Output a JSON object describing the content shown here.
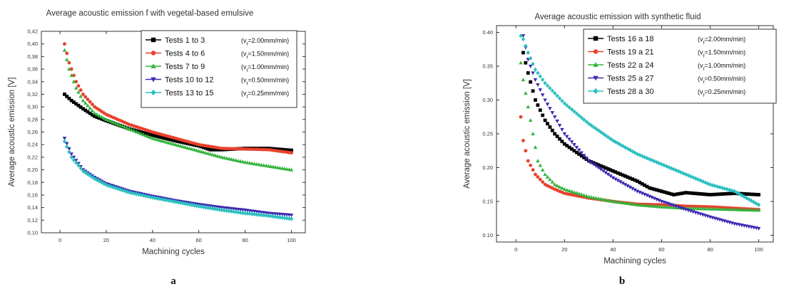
{
  "figure": {
    "panel_labels": [
      "a",
      "b"
    ]
  },
  "chart_data": [
    {
      "type": "scatter",
      "title": "Average acoustic emission f with vegetal-based emulsive",
      "xlabel": "Machining cycles",
      "ylabel": "Average acoustic emission [V]",
      "xlim": [
        -8,
        106
      ],
      "ylim": [
        0.1,
        0.42
      ],
      "x_ticks": [
        0,
        20,
        40,
        60,
        80,
        100
      ],
      "y_ticks": [
        0.1,
        0.12,
        0.14,
        0.16,
        0.18,
        0.2,
        0.22,
        0.24,
        0.26,
        0.28,
        0.3,
        0.32,
        0.34,
        0.36,
        0.38,
        0.4,
        0.42
      ],
      "y_tick_labels": [
        "0,10",
        "0,12",
        "0,14",
        "0,16",
        "0,18",
        "0,20",
        "0,22",
        "0,24",
        "0,26",
        "0,28",
        "0,30",
        "0,32",
        "0,34",
        "0,36",
        "0,38",
        "0,40",
        "0,42"
      ],
      "grid": false,
      "legend_position": "top-right",
      "series": [
        {
          "name": "Tests 1 to 3",
          "condition": "(v",
          "sub": "f",
          "condition_rest": "=2.00mm/min)",
          "color": "#000000",
          "marker": "square",
          "x": [
            2,
            5,
            10,
            15,
            20,
            30,
            40,
            50,
            60,
            65,
            70,
            80,
            90,
            100
          ],
          "y": [
            0.32,
            0.31,
            0.297,
            0.285,
            0.278,
            0.265,
            0.255,
            0.246,
            0.238,
            0.232,
            0.232,
            0.234,
            0.234,
            0.231
          ]
        },
        {
          "name": "Tests 4 to 6",
          "condition": "(v",
          "sub": "f",
          "condition_rest": "=1.50mm/min)",
          "color": "#e8412c",
          "marker": "circle",
          "x": [
            2,
            4,
            7,
            10,
            15,
            20,
            30,
            40,
            50,
            60,
            70,
            80,
            90,
            100
          ],
          "y": [
            0.4,
            0.37,
            0.34,
            0.32,
            0.3,
            0.288,
            0.272,
            0.26,
            0.25,
            0.24,
            0.234,
            0.233,
            0.232,
            0.227
          ]
        },
        {
          "name": "Tests 7 to 9",
          "condition": "(v",
          "sub": "f",
          "condition_rest": "=1.00mm/min)",
          "color": "#33b43c",
          "marker": "triangle-up",
          "x": [
            2,
            4,
            7,
            10,
            15,
            20,
            30,
            40,
            50,
            60,
            70,
            80,
            90,
            100
          ],
          "y": [
            0.39,
            0.36,
            0.33,
            0.31,
            0.29,
            0.28,
            0.265,
            0.25,
            0.24,
            0.23,
            0.22,
            0.212,
            0.206,
            0.2
          ]
        },
        {
          "name": "Tests 10 to 12",
          "condition": "(v",
          "sub": "f",
          "condition_rest": "=0.50mm/min)",
          "color": "#3a2ab0",
          "marker": "triangle-down",
          "x": [
            2,
            5,
            10,
            15,
            20,
            30,
            40,
            50,
            60,
            70,
            80,
            90,
            100
          ],
          "y": [
            0.25,
            0.225,
            0.2,
            0.188,
            0.178,
            0.166,
            0.158,
            0.151,
            0.145,
            0.14,
            0.136,
            0.131,
            0.128
          ]
        },
        {
          "name": "Tests 13 to 15",
          "condition": "(v",
          "sub": "f",
          "condition_rest": "=0.25mm/min)",
          "color": "#2bbfbf",
          "marker": "diamond",
          "x": [
            2,
            5,
            10,
            15,
            20,
            30,
            40,
            50,
            60,
            70,
            80,
            90,
            100
          ],
          "y": [
            0.245,
            0.22,
            0.198,
            0.186,
            0.176,
            0.164,
            0.156,
            0.149,
            0.142,
            0.136,
            0.131,
            0.127,
            0.122
          ]
        }
      ]
    },
    {
      "type": "scatter",
      "title": "Average acoustic emission with synthetic fluid",
      "xlabel": "Machining cycles",
      "ylabel": "Average acoustic emission [V]",
      "xlim": [
        -8,
        106
      ],
      "ylim": [
        0.09,
        0.41
      ],
      "x_ticks": [
        0,
        20,
        40,
        60,
        80,
        100
      ],
      "y_ticks": [
        0.1,
        0.15,
        0.2,
        0.25,
        0.3,
        0.35,
        0.4
      ],
      "y_tick_labels": [
        "0.10",
        "0.15",
        "0.20",
        "0.25",
        "0.30",
        "0.35",
        "0.40"
      ],
      "grid": false,
      "legend_position": "top-right",
      "series": [
        {
          "name": "Tests 16 a 18",
          "condition": "(v",
          "sub": "f",
          "condition_rest": "=2.00mm/min)",
          "color": "#000000",
          "marker": "square",
          "x": [
            3,
            5,
            8,
            12,
            16,
            20,
            30,
            40,
            50,
            55,
            60,
            65,
            70,
            80,
            90,
            100
          ],
          "y": [
            0.37,
            0.34,
            0.3,
            0.27,
            0.25,
            0.235,
            0.21,
            0.195,
            0.18,
            0.17,
            0.165,
            0.16,
            0.163,
            0.16,
            0.162,
            0.16
          ]
        },
        {
          "name": "Tests 19 a 21",
          "condition": "(v",
          "sub": "f",
          "condition_rest": "=1.50mm/min)",
          "color": "#e8412c",
          "marker": "circle",
          "x": [
            2,
            3,
            5,
            8,
            12,
            16,
            20,
            30,
            40,
            50,
            60,
            70,
            80,
            90,
            100
          ],
          "y": [
            0.275,
            0.24,
            0.21,
            0.19,
            0.175,
            0.168,
            0.162,
            0.155,
            0.15,
            0.146,
            0.145,
            0.143,
            0.142,
            0.14,
            0.138
          ]
        },
        {
          "name": "Tests 22 a 24",
          "condition": "(v",
          "sub": "f",
          "condition_rest": "=1.00mm/min)",
          "color": "#33b43c",
          "marker": "triangle-up",
          "x": [
            2,
            3,
            5,
            7,
            9,
            12,
            16,
            20,
            30,
            40,
            50,
            60,
            70,
            80,
            90,
            100
          ],
          "y": [
            0.355,
            0.33,
            0.29,
            0.25,
            0.21,
            0.19,
            0.175,
            0.168,
            0.157,
            0.15,
            0.145,
            0.142,
            0.14,
            0.139,
            0.138,
            0.137
          ]
        },
        {
          "name": "Tests 25 a 27",
          "condition": "(v",
          "sub": "f",
          "condition_rest": "=0.50mm/min)",
          "color": "#3a2ab0",
          "marker": "triangle-down",
          "x": [
            3,
            5,
            8,
            12,
            16,
            20,
            25,
            30,
            40,
            50,
            60,
            70,
            80,
            90,
            100
          ],
          "y": [
            0.395,
            0.36,
            0.33,
            0.3,
            0.275,
            0.25,
            0.23,
            0.21,
            0.185,
            0.165,
            0.15,
            0.138,
            0.127,
            0.117,
            0.11
          ]
        },
        {
          "name": "Tests 28 a 30",
          "condition": "(v",
          "sub": "f",
          "condition_rest": "=0.25mm/min)",
          "color": "#2bbfbf",
          "marker": "diamond",
          "x": [
            2,
            3,
            5,
            8,
            12,
            16,
            20,
            30,
            40,
            50,
            60,
            70,
            80,
            90,
            100
          ],
          "y": [
            0.395,
            0.39,
            0.37,
            0.345,
            0.325,
            0.31,
            0.295,
            0.265,
            0.24,
            0.22,
            0.205,
            0.19,
            0.175,
            0.165,
            0.145
          ]
        }
      ]
    }
  ]
}
